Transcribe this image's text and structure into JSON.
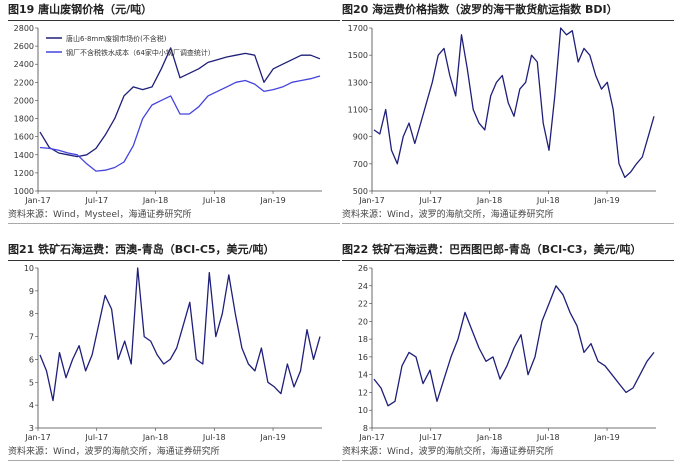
{
  "charts": [
    {
      "title": "图19 唐山废钢价格（元/吨）",
      "source": "资料来源：Wind，Mysteel，海通证券研究所",
      "chart_data": {
        "type": "line",
        "x_ticks": [
          "Jan-17",
          "Jul-17",
          "Jan-18",
          "Jul-18",
          "Jan-19"
        ],
        "ylim": [
          1000,
          2800
        ],
        "y_ticks": [
          1000,
          1200,
          1400,
          1600,
          1800,
          2000,
          2200,
          2400,
          2600,
          2800
        ],
        "legend_position": "top-left",
        "series": [
          {
            "name": "唐山6-8mm废钢市场价(不含税)",
            "color": "#1f1f7a",
            "values": [
              1650,
              1480,
              1420,
              1400,
              1380,
              1400,
              1470,
              1620,
              1800,
              2050,
              2150,
              2120,
              2150,
              2350,
              2580,
              2250,
              2300,
              2350,
              2420,
              2450,
              2480,
              2500,
              2520,
              2500,
              2200,
              2350,
              2400,
              2450,
              2500,
              2500,
              2460
            ]
          },
          {
            "name": "钢厂不含税铁水成本（64家中小钢厂调查统计）",
            "color": "#4444dd",
            "values": [
              1480,
              1470,
              1450,
              1420,
              1400,
              1300,
              1220,
              1230,
              1260,
              1320,
              1500,
              1800,
              1950,
              2000,
              2050,
              1850,
              1850,
              1930,
              2050,
              2100,
              2150,
              2200,
              2220,
              2180,
              2100,
              2120,
              2150,
              2200,
              2220,
              2240,
              2270
            ]
          }
        ]
      }
    },
    {
      "title": "图20 海运费价格指数（波罗的海干散货航运指数 BDI）",
      "source": "资料来源：Wind，波罗的海航交所，海通证券研究所",
      "chart_data": {
        "type": "line",
        "x_ticks": [
          "Jan-17",
          "Jul-17",
          "Jan-18",
          "Jul-18",
          "Jan-19"
        ],
        "ylim": [
          500,
          1700
        ],
        "y_ticks": [
          500,
          700,
          900,
          1100,
          1300,
          1500,
          1700
        ],
        "series": [
          {
            "name": "BDI",
            "color": "#1f1f7a",
            "values": [
              950,
              920,
              1100,
              800,
              700,
              900,
              1000,
              850,
              1000,
              1150,
              1300,
              1500,
              1550,
              1350,
              1200,
              1650,
              1400,
              1100,
              1000,
              950,
              1200,
              1300,
              1350,
              1150,
              1050,
              1250,
              1300,
              1500,
              1450,
              1000,
              800,
              1200,
              1700,
              1650,
              1680,
              1450,
              1550,
              1500,
              1350,
              1250,
              1300,
              1100,
              700,
              600,
              640,
              700,
              750,
              900,
              1050
            ]
          }
        ]
      }
    },
    {
      "title": "图21 铁矿石海运费：西澳-青岛（BCI-C5，美元/吨）",
      "source": "资料来源：Wind，波罗的海航交所，海通证券研究所",
      "chart_data": {
        "type": "line",
        "x_ticks": [
          "Jan-17",
          "Jul-17",
          "Jan-18",
          "Jul-18",
          "Jan-19"
        ],
        "ylim": [
          3,
          10
        ],
        "y_ticks": [
          3,
          4,
          5,
          6,
          7,
          8,
          9,
          10
        ],
        "series": [
          {
            "name": "BCI-C5",
            "color": "#1f1f7a",
            "values": [
              6.2,
              5.5,
              4.2,
              6.3,
              5.2,
              6.0,
              6.6,
              5.5,
              6.2,
              7.5,
              8.8,
              8.2,
              6.0,
              6.8,
              5.8,
              10.0,
              7.0,
              6.8,
              6.2,
              5.8,
              6.0,
              6.5,
              7.5,
              8.5,
              6.0,
              5.8,
              9.8,
              7.0,
              8.0,
              9.7,
              8.0,
              6.5,
              5.8,
              5.5,
              6.5,
              5.0,
              4.8,
              4.5,
              5.8,
              4.8,
              5.5,
              7.3,
              6.0,
              7.0
            ]
          }
        ]
      }
    },
    {
      "title": "图22 铁矿石海运费：巴西图巴郎-青岛（BCI-C3，美元/吨）",
      "source": "资料来源：Wind，波罗的海航交所，海通证券研究所",
      "chart_data": {
        "type": "line",
        "x_ticks": [
          "Jan-17",
          "Jul-17",
          "Jan-18",
          "Jul-18",
          "Jan-19"
        ],
        "ylim": [
          8,
          26
        ],
        "y_ticks": [
          8,
          10,
          12,
          14,
          16,
          18,
          20,
          22,
          24,
          26
        ],
        "series": [
          {
            "name": "BCI-C3",
            "color": "#1f1f7a",
            "values": [
              13.5,
              12.5,
              10.5,
              11.0,
              15.0,
              16.5,
              16.0,
              13.0,
              14.5,
              11.0,
              13.5,
              16.0,
              18.0,
              21.0,
              19.0,
              17.0,
              15.5,
              16.0,
              13.5,
              15.0,
              17.0,
              18.5,
              14.0,
              16.0,
              20.0,
              22.0,
              24.0,
              23.0,
              21.0,
              19.5,
              16.5,
              17.5,
              15.5,
              15.0,
              14.0,
              13.0,
              12.0,
              12.5,
              14.0,
              15.5,
              16.5
            ]
          }
        ]
      }
    }
  ]
}
